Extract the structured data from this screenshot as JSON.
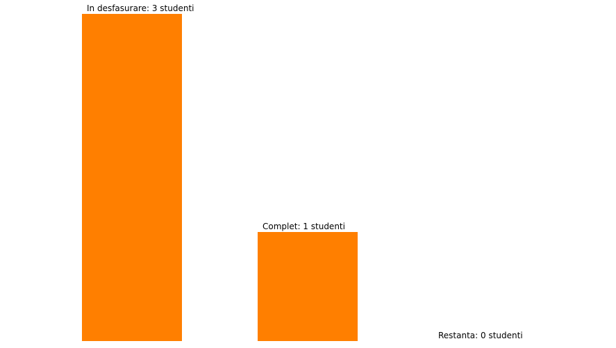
{
  "chart_data": {
    "type": "bar",
    "categories": [
      "In desfasurare",
      "Complet",
      "Restanta"
    ],
    "values": [
      3,
      1,
      0
    ],
    "unit": "studenti",
    "data_labels": [
      "In desfasurare: 3 studenti",
      "Complet: 1 studenti",
      "Restanta: 0 studenti"
    ],
    "ylim": [
      0,
      3
    ],
    "grid": false,
    "legend": "none",
    "colors": {
      "bar": "#ff7f00",
      "label": "#000000",
      "background": "#ffffff"
    }
  }
}
